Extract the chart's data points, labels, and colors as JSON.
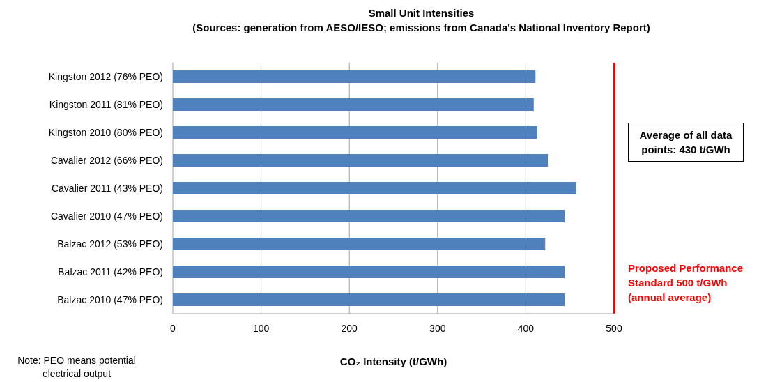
{
  "chart_data": {
    "type": "bar",
    "orientation": "horizontal",
    "title": "Small Unit Intensities",
    "subtitle": "(Sources: generation from AESO/IESO; emissions from Canada's National Inventory Report)",
    "categories": [
      "Kingston 2012 (76% PEO)",
      "Kingston 2011 (81% PEO)",
      "Kingston 2010 (80% PEO)",
      "Cavalier 2012 (66% PEO)",
      "Cavalier 2011 (43% PEO)",
      "Cavalier 2010 (47% PEO)",
      "Balzac 2012 (53% PEO)",
      "Balzac 2011 (42% PEO)",
      "Balzac 2010 (47% PEO)"
    ],
    "values": [
      411,
      409,
      413,
      425,
      457,
      444,
      422,
      444,
      444
    ],
    "color": "#4f81bd",
    "xlabel": "CO₂ Intensity (t/GWh)",
    "xlim": [
      0,
      500
    ],
    "xticks": [
      0,
      100,
      200,
      300,
      400,
      500
    ],
    "grid": "x",
    "ref_lines": [
      {
        "axis": "x",
        "value": 500,
        "label": "Proposed Performance Standard 500 t/GWh (annual average)",
        "color": "#ff0000"
      }
    ],
    "annotations": [
      "Average of all data points: 430 t/GWh",
      "Note: PEO means potential electrical output"
    ]
  }
}
